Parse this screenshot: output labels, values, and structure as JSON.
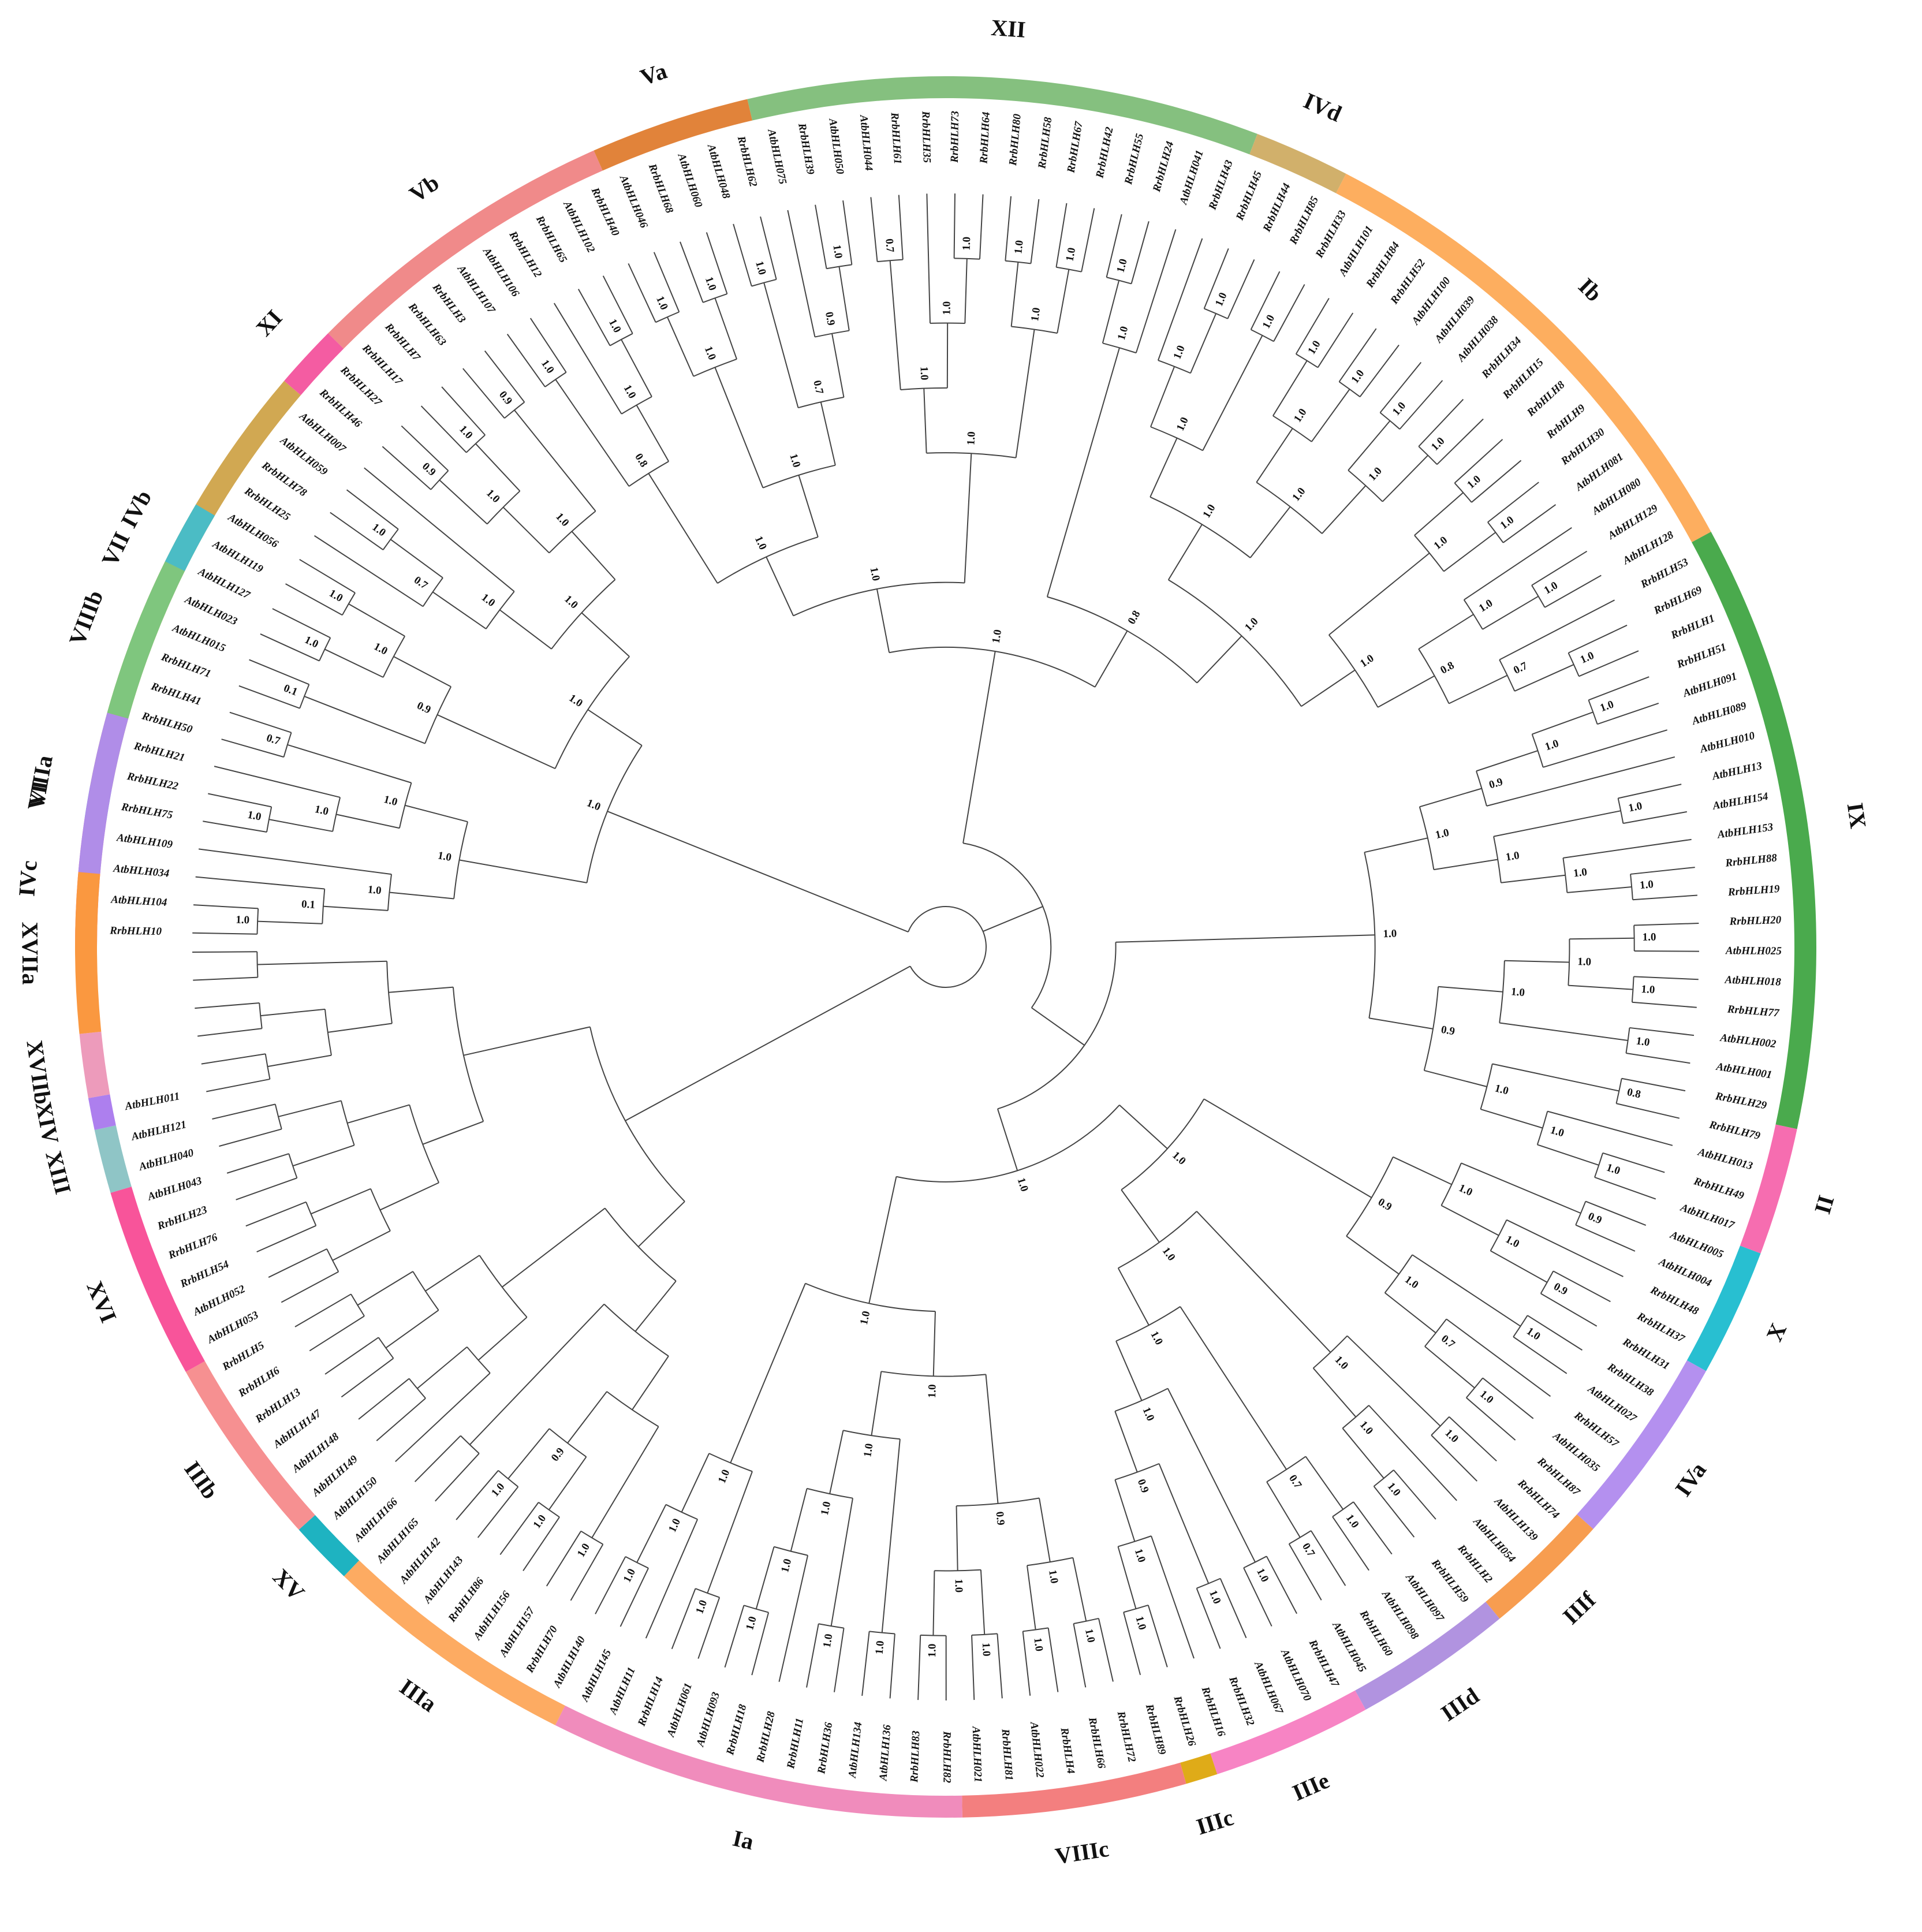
{
  "tree": {
    "leaves": [
      "RrbHLH10",
      "AtbHLH104",
      "AtbHLH034",
      "AtbHLH109",
      "RrbHLH75",
      "RrbHLH22",
      "RrbHLH21",
      "RrbHLH50",
      "RrbHLH41",
      "RrbHLH71",
      "AtbHLH015",
      "AtbHLH023",
      "AtbHLH127",
      "AtbHLH119",
      "AtbHLH056",
      "RrbHLH25",
      "RrbHLH78",
      "AtbHLH059",
      "AtbHLH007",
      "RrbHLH46",
      "RrbHLH27",
      "RrbHLH17",
      "RrbHLH7",
      "RrbHLH63",
      "RrbHLH3",
      "AtbHLH107",
      "AtbHLH106",
      "RrbHLH12",
      "RrbHLH65",
      "AtbHLH102",
      "RrbHLH40",
      "AtbHLH046",
      "RrbHLH68",
      "AtbHLH060",
      "AtbHLH048",
      "RrbHLH62",
      "AtbHLH075",
      "RrbHLH39",
      "AtbHLH050",
      "AtbHLH044",
      "RrbHLH61",
      "RrbHLH35",
      "RrbHLH73",
      "RrbHLH64",
      "RrbHLH80",
      "RrbHLH58",
      "RrbHLH67",
      "RrbHLH42",
      "RrbHLH55",
      "RrbHLH24",
      "AtbHLH041",
      "RrbHLH43",
      "RrbHLH45",
      "RrbHLH44",
      "RrbHLH85",
      "RrbHLH33",
      "AtbHLH101",
      "RrbHLH84",
      "RrbHLH52",
      "AtbHLH100",
      "AtbHLH039",
      "AtbHLH038",
      "RrbHLH34",
      "RrbHLH15",
      "RrbHLH8",
      "RrbHLH9",
      "RrbHLH30",
      "AtbHLH081",
      "AtbHLH080",
      "AtbHLH129",
      "AtbHLH128",
      "RrbHLH53",
      "RrbHLH69",
      "RrbHLH1",
      "RrbHLH51",
      "AtbHLH091",
      "AtbHLH089",
      "AtbHLH010",
      "AtbHLH13",
      "AtbHLH154",
      "AtbHLH153",
      "RrbHLH88",
      "RrbHLH19",
      "RrbHLH20",
      "AtbHLH025",
      "AtbHLH018",
      "RrbHLH77",
      "AtbHLH002",
      "AtbHLH001",
      "RrbHLH29",
      "RrbHLH79",
      "AtbHLH013",
      "RrbHLH49",
      "AtbHLH017",
      "AtbHLH005",
      "AtbHLH004",
      "RrbHLH48",
      "RrbHLH37",
      "RrbHLH31",
      "RrbHLH38",
      "AtbHLH027",
      "RrbHLH57",
      "AtbHLH035",
      "RrbHLH87",
      "RrbHLH74",
      "AtbHLH139",
      "AtbHLH054",
      "RrbHLH2",
      "RrbHLH59",
      "AtbHLH097",
      "AtbHLH098",
      "RrbHLH60",
      "AtbHLH045",
      "RrbHLH47",
      "AtbHLH070",
      "AtbHLH067",
      "RrbHLH32",
      "RrbHLH16",
      "RrbHLH26",
      "RrbHLH89",
      "RrbHLH72",
      "RrbHLH66",
      "RrbHLH4",
      "AtbHLH022",
      "RrbHLH81",
      "AtbHLH021",
      "RrbHLH82",
      "RrbHLH83",
      "AtbHLH136",
      "AtbHLH134",
      "RrbHLH36",
      "RrbHLH11",
      "RrbHLH28",
      "RrbHLH18",
      "AtbHLH093",
      "AtbHLH061",
      "RrbHLH14",
      "AtbHLH11",
      "AtbHLH145",
      "AtbHLH140",
      "RrbHLH70",
      "AtbHLH157",
      "AtbHLH156",
      "RrbHLH86",
      "AtbHLH143",
      "AtbHLH142",
      "AtbHLH165",
      "AtbHLH166",
      "AtbHLH150",
      "AtbHLH149",
      "AtbHLH148",
      "AtbHLH147",
      "RrbHLH13",
      "RrbHLH6",
      "RrbHLH5",
      "AtbHLH053",
      "AtbHLH052",
      "RrbHLH54",
      "RrbHLH76",
      "RrbHLH23",
      "AtbHLH043",
      "AtbHLH040",
      "AtbHLH121",
      "AtbHLH011"
    ],
    "bootstrap": [
      "1.0",
      "0.1",
      "1.0",
      "1.0",
      "1.0",
      "0.7",
      "1.0",
      "1.0",
      "0.1",
      "1.0",
      "1.0",
      "1.0",
      "0.9",
      "1.0",
      "0.7",
      "1.0",
      "0.9",
      "1.0",
      "1.0",
      "0.9",
      "1.0",
      "1.0",
      "1.0",
      "1.0",
      "1.0",
      "1.0",
      "1.0",
      "0.8",
      "1.0",
      "1.0",
      "1.0",
      "1.0",
      "1.0",
      "0.9",
      "0.7",
      "1.0",
      "1.0",
      "0.7",
      "1.0",
      "1.0",
      "1.0",
      "1.0",
      "1.0",
      "1.0",
      "1.0",
      "1.0",
      "1.0",
      "1.0",
      "1.0",
      "1.0",
      "1.0",
      "1.0",
      "1.0",
      "1.0",
      "1.0",
      "1.0",
      "1.0",
      "1.0",
      "1.0",
      "1.0",
      "1.0",
      "1.0",
      "1.0",
      "1.0",
      "1.0",
      "1.0",
      "0.7",
      "0.8",
      "1.0",
      "1.0",
      "0.8",
      "1.0",
      "1.0",
      "1.0",
      "0.9",
      "1.0",
      "1.0",
      "1.0",
      "1.0",
      "1.0",
      "1.0",
      "1.0",
      "1.0",
      "1.0",
      "1.0",
      "0.8",
      "1.0",
      "1.0",
      "1.0",
      "0.9",
      "1.0",
      "0.9",
      "0.9",
      "1.0",
      "1.0",
      "1.0",
      "1.0",
      "0.7",
      "1.0",
      "0.9",
      "1.0",
      "1.0",
      "1.0",
      "1.0",
      "1.0",
      "0.7",
      "0.7",
      "1.0",
      "1.0",
      "1.0",
      "1.0",
      "0.9",
      "1.0",
      "1.0",
      "1.0",
      "1.0",
      "1.0",
      "1.0",
      "1.0",
      "1.0",
      "1.0",
      "1.0",
      "0.9",
      "1.0",
      "1.0",
      "1.0",
      "1.0",
      "1.0",
      "1.0",
      "1.0",
      "1.0",
      "1.0",
      "1.0",
      "1.0",
      "1.0",
      "1.0",
      "1.0",
      "1.0",
      "1.0",
      "0.9"
    ]
  },
  "clades": [
    {
      "name": "IVc",
      "color": "#f45ca2"
    },
    {
      "name": "VI",
      "color": "#41a9e1"
    },
    {
      "name": "VII",
      "color": "#d1a852"
    },
    {
      "name": "XI",
      "color": "#f45ca2"
    },
    {
      "name": "Vb",
      "color": "#f08a8a"
    },
    {
      "name": "Va",
      "color": "#e1833a"
    },
    {
      "name": "XII",
      "color": "#85c07f"
    },
    {
      "name": "IVd",
      "color": "#d1b06b"
    },
    {
      "name": "Ib",
      "color": "#fdae5f"
    },
    {
      "name": "IX",
      "color": "#4aaa4d"
    },
    {
      "name": "II",
      "color": "#f66db0"
    },
    {
      "name": "X",
      "color": "#28bfd1"
    },
    {
      "name": "IVa",
      "color": "#b490ef"
    },
    {
      "name": "IIIf",
      "color": "#f79d50"
    },
    {
      "name": "IIId",
      "color": "#b193e0"
    },
    {
      "name": "IIIe",
      "color": "#f784c4"
    },
    {
      "name": "IIIc",
      "color": "#dfab18"
    },
    {
      "name": "VIIIc",
      "color": "#f37f7f"
    },
    {
      "name": "Ia",
      "color": "#f08cbc"
    },
    {
      "name": "IIIa",
      "color": "#fdab62"
    },
    {
      "name": "XV",
      "color": "#1eb3c1"
    },
    {
      "name": "IIIb",
      "color": "#f69091"
    },
    {
      "name": "XVI",
      "color": "#f8549a"
    },
    {
      "name": "XIII",
      "color": "#8fc5c6"
    },
    {
      "name": "XIV",
      "color": "#ad7fee"
    },
    {
      "name": "XVIIb",
      "color": "#ed9bbb"
    },
    {
      "name": "XVIIa",
      "color": "#fa9840"
    },
    {
      "name": "VIIIa",
      "color": "#b08de8"
    },
    {
      "name": "VIIIb",
      "color": "#7fc67e"
    },
    {
      "name": "IVb",
      "color": "#4bbcc5"
    }
  ]
}
